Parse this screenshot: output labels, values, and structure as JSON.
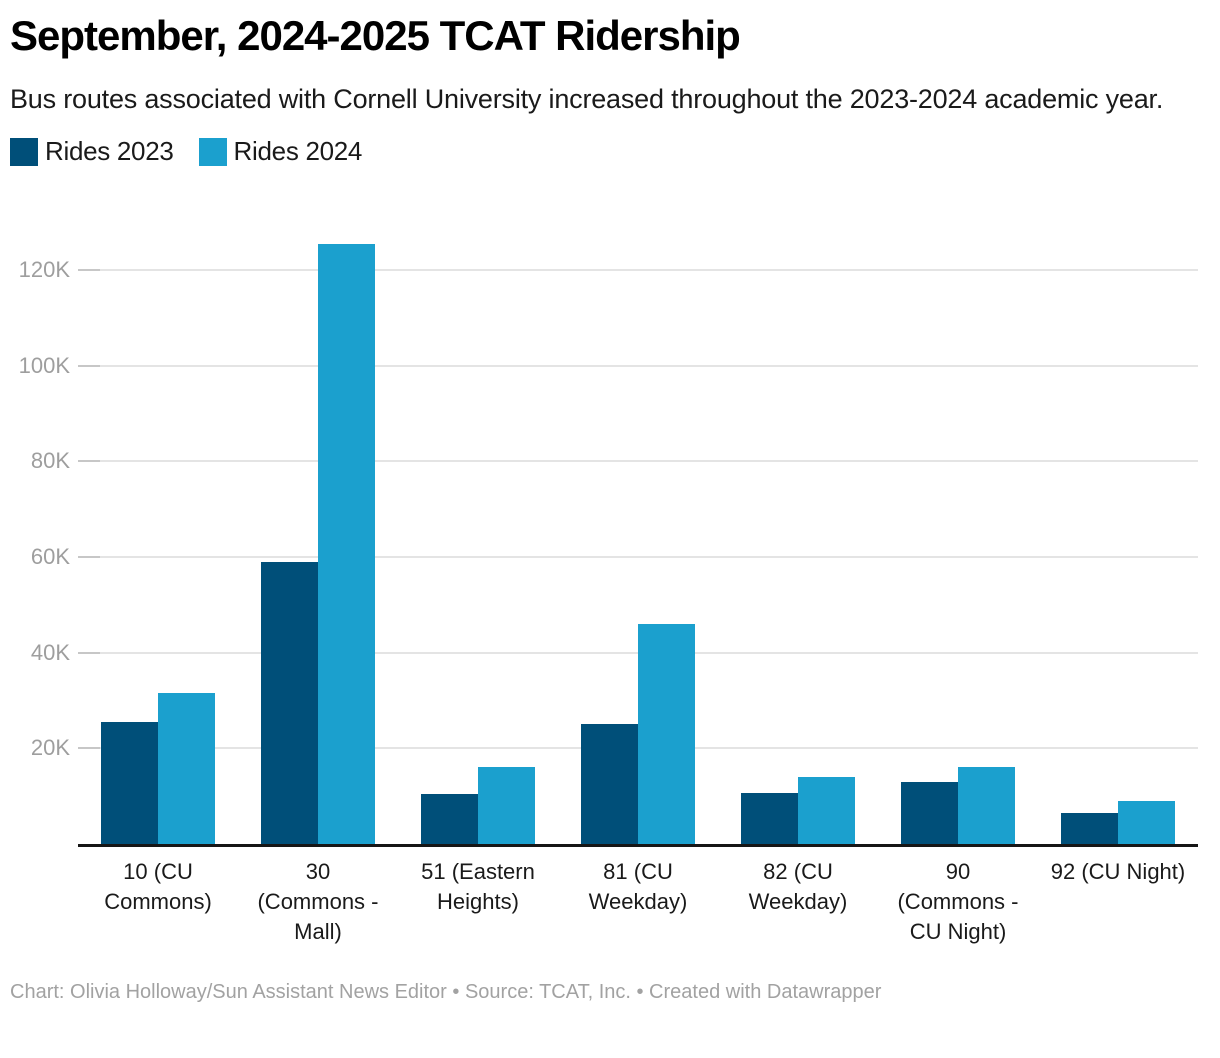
{
  "header": {
    "title": "September, 2024-2025 TCAT Ridership",
    "subtitle": "Bus routes associated with Cornell University increased throughout the 2023-2024 academic year."
  },
  "legend": {
    "items": [
      {
        "label": "Rides 2023",
        "color": "#004F79"
      },
      {
        "label": "Rides 2024",
        "color": "#1BA0CE"
      }
    ]
  },
  "chart_data": {
    "type": "bar",
    "subtype": "grouped-column",
    "title": "September, 2024-2025 TCAT Ridership",
    "categories": [
      "10 (CU Commons)",
      "30 (Commons - Mall)",
      "51 (Eastern Heights)",
      "81 (CU Weekday)",
      "82 (CU Weekday)",
      "90 (Commons - CU Night)",
      "92 (CU Night)"
    ],
    "tick_display": [
      [
        "10 (CU",
        "Commons)"
      ],
      [
        "30",
        "(Commons -",
        "Mall)"
      ],
      [
        "51 (Eastern",
        "Heights)"
      ],
      [
        "81 (CU",
        "Weekday)"
      ],
      [
        "82 (CU",
        "Weekday)"
      ],
      [
        "90",
        "(Commons -",
        "CU Night)"
      ],
      [
        "92 (CU Night)"
      ]
    ],
    "series": [
      {
        "name": "Rides 2023",
        "color": "#004F79",
        "values": [
          25400,
          59000,
          10500,
          25100,
          10700,
          12900,
          6400
        ]
      },
      {
        "name": "Rides 2024",
        "color": "#1BA0CE",
        "values": [
          31600,
          125500,
          16000,
          46000,
          14100,
          16200,
          8900
        ]
      }
    ],
    "xlabel": "",
    "ylabel": "",
    "ylim": [
      0,
      127500
    ],
    "yticks": [
      20000,
      40000,
      60000,
      80000,
      100000,
      120000
    ],
    "ytick_labels": [
      "20K",
      "40K",
      "60K",
      "80K",
      "100K",
      "120K"
    ],
    "grid": true,
    "legend_position": "top-left"
  },
  "footer": {
    "text": "Chart: Olivia Holloway/Sun Assistant News Editor • Source: TCAT, Inc. • Created with Datawrapper"
  }
}
